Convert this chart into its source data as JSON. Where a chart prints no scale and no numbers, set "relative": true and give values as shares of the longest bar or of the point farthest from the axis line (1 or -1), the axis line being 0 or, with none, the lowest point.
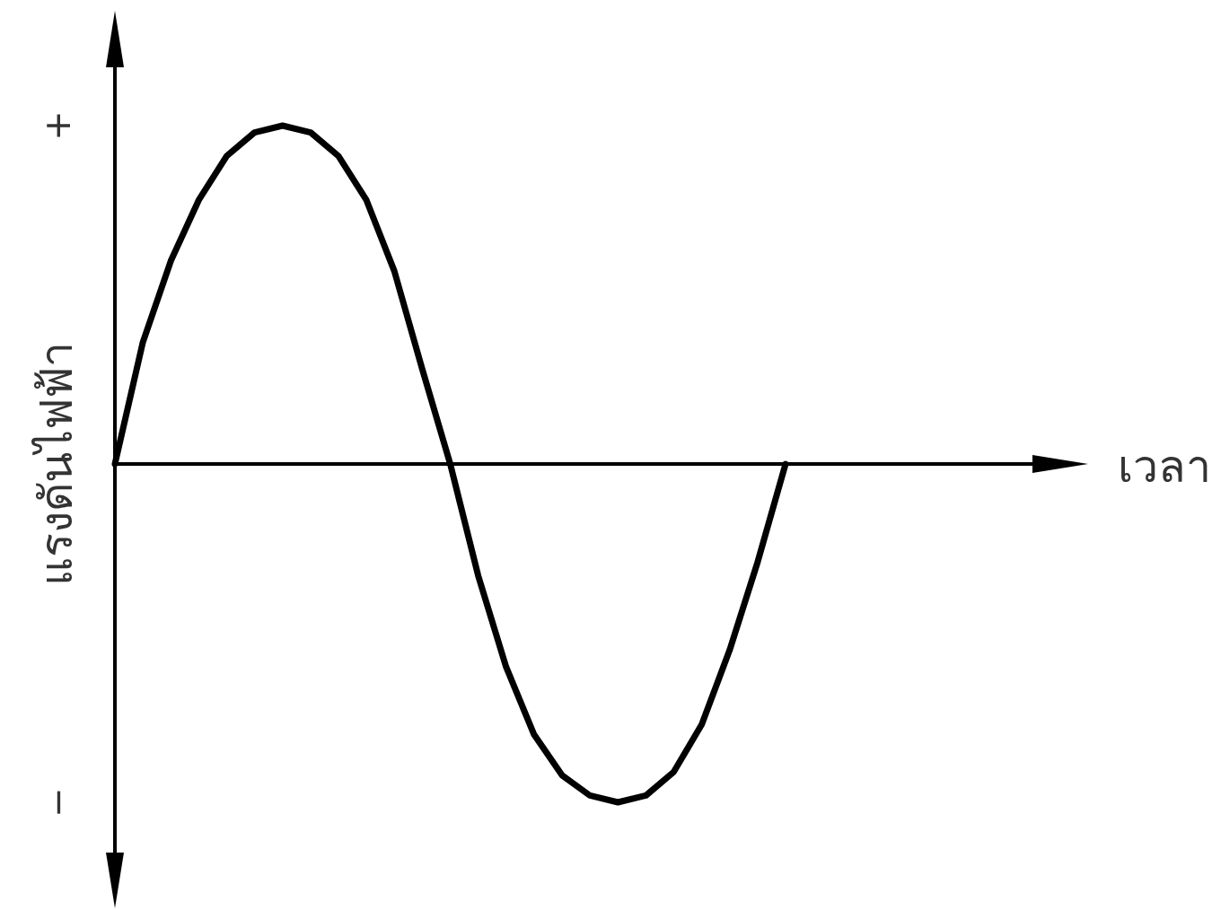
{
  "chart_data": {
    "type": "line",
    "relative": true,
    "ylabel": "แรงดันไฟฟ้า",
    "annotations": [
      "+",
      "−",
      "เวลา"
    ],
    "categories": [
      null,
      null,
      null,
      null,
      null,
      null,
      null,
      null,
      null,
      null,
      null,
      null,
      null,
      null,
      null,
      null,
      null,
      null,
      null,
      null,
      null,
      null,
      null,
      null,
      null
    ],
    "color": "#000000",
    "values": [
      0,
      0.36,
      0.6,
      0.78,
      0.91,
      0.98,
      1,
      0.98,
      0.91,
      0.78,
      0.57,
      0.28,
      0,
      -0.33,
      -0.6,
      -0.8,
      -0.92,
      -0.98,
      -1,
      -0.98,
      -0.91,
      -0.77,
      -0.55,
      -0.29,
      0
    ]
  }
}
